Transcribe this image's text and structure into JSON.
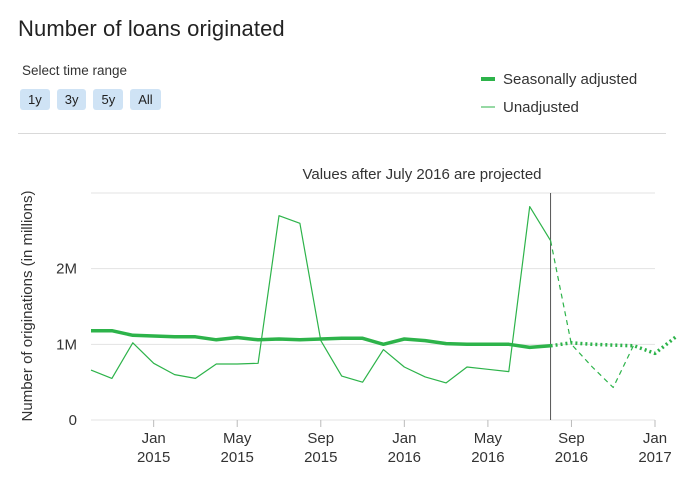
{
  "header": {
    "title": "Number of loans originated",
    "range_label": "Select time range",
    "range_buttons": [
      "1y",
      "3y",
      "5y",
      "All"
    ]
  },
  "colors": {
    "series": "#2db34a",
    "projection_line": "#555555",
    "grid": "#e3e3e3"
  },
  "chart_data": {
    "type": "line",
    "title": "Number of loans originated",
    "annotation": "Values after July 2016 are projected",
    "ylabel": "Number of originations (in millions)",
    "xlabel": "",
    "ylim": [
      0,
      3
    ],
    "y_ticks": [
      {
        "value": 0,
        "label": "0"
      },
      {
        "value": 1,
        "label": "1M"
      },
      {
        "value": 2,
        "label": "2M"
      }
    ],
    "x_range": [
      "2014-10",
      "2017-01"
    ],
    "x_ticks": [
      {
        "date": "2015-01",
        "month": "Jan",
        "year": "2015"
      },
      {
        "date": "2015-05",
        "month": "May",
        "year": "2015"
      },
      {
        "date": "2015-09",
        "month": "Sep",
        "year": "2015"
      },
      {
        "date": "2016-01",
        "month": "Jan",
        "year": "2016"
      },
      {
        "date": "2016-05",
        "month": "May",
        "year": "2016"
      },
      {
        "date": "2016-09",
        "month": "Sep",
        "year": "2016"
      },
      {
        "date": "2017-01",
        "month": "Jan",
        "year": "2017"
      }
    ],
    "projection_start": "2016-08",
    "series": [
      {
        "name": "Seasonally adjusted",
        "style": "thick",
        "points": [
          [
            "2014-10",
            1.18
          ],
          [
            "2014-11",
            1.18
          ],
          [
            "2014-12",
            1.12
          ],
          [
            "2015-01",
            1.11
          ],
          [
            "2015-02",
            1.1
          ],
          [
            "2015-03",
            1.1
          ],
          [
            "2015-04",
            1.06
          ],
          [
            "2015-05",
            1.09
          ],
          [
            "2015-06",
            1.06
          ],
          [
            "2015-07",
            1.07
          ],
          [
            "2015-08",
            1.06
          ],
          [
            "2015-09",
            1.07
          ],
          [
            "2015-10",
            1.08
          ],
          [
            "2015-11",
            1.08
          ],
          [
            "2015-12",
            1.0
          ],
          [
            "2016-01",
            1.07
          ],
          [
            "2016-02",
            1.05
          ],
          [
            "2016-03",
            1.01
          ],
          [
            "2016-04",
            1.0
          ],
          [
            "2016-05",
            1.0
          ],
          [
            "2016-06",
            1.0
          ],
          [
            "2016-07",
            0.96
          ],
          [
            "2016-08",
            0.98
          ],
          [
            "2016-09",
            1.02
          ],
          [
            "2016-10",
            1.0
          ],
          [
            "2016-11",
            0.99
          ],
          [
            "2016-12",
            0.98
          ],
          [
            "2017-01",
            0.88
          ],
          [
            "2017-02",
            1.1
          ]
        ]
      },
      {
        "name": "Unadjusted",
        "style": "thin",
        "points": [
          [
            "2014-10",
            0.66
          ],
          [
            "2014-11",
            0.55
          ],
          [
            "2014-12",
            1.02
          ],
          [
            "2015-01",
            0.75
          ],
          [
            "2015-02",
            0.6
          ],
          [
            "2015-03",
            0.55
          ],
          [
            "2015-04",
            0.74
          ],
          [
            "2015-05",
            0.74
          ],
          [
            "2015-06",
            0.75
          ],
          [
            "2015-07",
            2.7
          ],
          [
            "2015-08",
            2.6
          ],
          [
            "2015-09",
            1.05
          ],
          [
            "2015-10",
            0.58
          ],
          [
            "2015-11",
            0.5
          ],
          [
            "2015-12",
            0.93
          ],
          [
            "2016-01",
            0.7
          ],
          [
            "2016-02",
            0.57
          ],
          [
            "2016-03",
            0.49
          ],
          [
            "2016-04",
            0.7
          ],
          [
            "2016-05",
            0.67
          ],
          [
            "2016-06",
            0.64
          ],
          [
            "2016-07",
            2.82
          ],
          [
            "2016-08",
            2.37
          ],
          [
            "2016-09",
            1.0
          ],
          [
            "2016-10",
            0.7
          ],
          [
            "2016-11",
            0.43
          ],
          [
            "2016-12",
            1.0
          ]
        ]
      }
    ],
    "legend_position": "top-right",
    "grid": true
  }
}
